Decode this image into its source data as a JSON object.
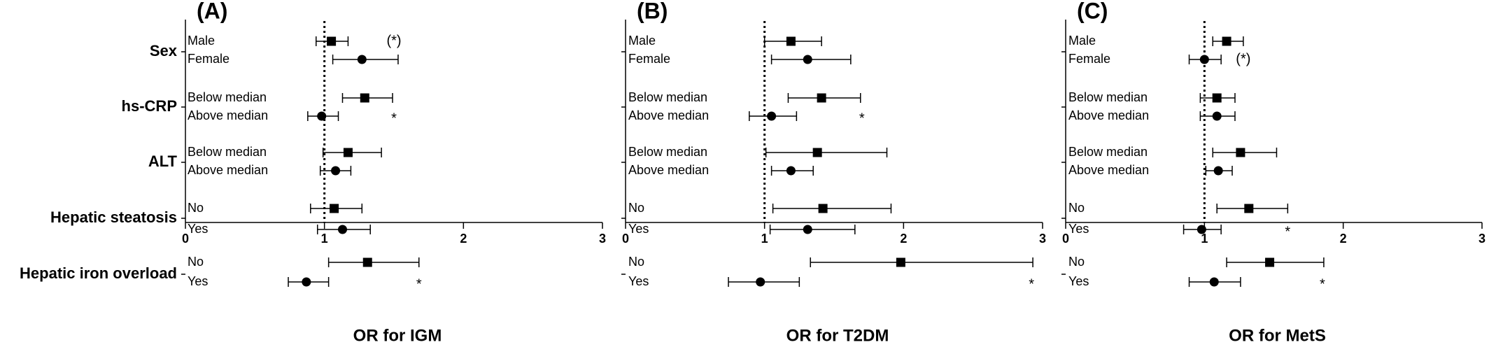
{
  "colors": {
    "ink": "#000000",
    "background": "#ffffff"
  },
  "groups": [
    {
      "label": "Sex",
      "subgroups": [
        "Male",
        "Female"
      ]
    },
    {
      "label": "hs-CRP",
      "subgroups": [
        "Below median",
        "Above median"
      ]
    },
    {
      "label": "ALT",
      "subgroups": [
        "Below median",
        "Above median"
      ]
    },
    {
      "label": "Hepatic steatosis",
      "subgroups": [
        "No",
        "Yes"
      ]
    },
    {
      "label": "Hepatic iron overload",
      "subgroups": [
        "No",
        "Yes"
      ]
    }
  ],
  "chart_data": [
    {
      "type": "forest",
      "panel": "(A)",
      "xlabel": "OR for IGM",
      "xlim": [
        0,
        3
      ],
      "xticks": [
        "0",
        "1",
        "2",
        "3"
      ],
      "reference_line": 1,
      "marker_style": {
        "first_subgroup": "square",
        "second_subgroup": "circle"
      },
      "rows": [
        {
          "group": "Sex",
          "subgroup": "Male",
          "or": 1.05,
          "ci": [
            0.94,
            1.17
          ]
        },
        {
          "group": "Sex",
          "subgroup": "Female",
          "or": 1.27,
          "ci": [
            1.06,
            1.53
          ]
        },
        {
          "group": "hs-CRP",
          "subgroup": "Below median",
          "or": 1.29,
          "ci": [
            1.13,
            1.49
          ]
        },
        {
          "group": "hs-CRP",
          "subgroup": "Above median",
          "or": 0.98,
          "ci": [
            0.88,
            1.1
          ]
        },
        {
          "group": "ALT",
          "subgroup": "Below median",
          "or": 1.17,
          "ci": [
            0.99,
            1.41
          ]
        },
        {
          "group": "ALT",
          "subgroup": "Above median",
          "or": 1.08,
          "ci": [
            0.97,
            1.19
          ]
        },
        {
          "group": "Hepatic steatosis",
          "subgroup": "No",
          "or": 1.07,
          "ci": [
            0.9,
            1.27
          ]
        },
        {
          "group": "Hepatic steatosis",
          "subgroup": "Yes",
          "or": 1.13,
          "ci": [
            0.95,
            1.33
          ]
        },
        {
          "group": "Hepatic iron overload",
          "subgroup": "No",
          "or": 1.31,
          "ci": [
            1.03,
            1.68
          ]
        },
        {
          "group": "Hepatic iron overload",
          "subgroup": "Yes",
          "or": 0.87,
          "ci": [
            0.74,
            1.03
          ]
        }
      ],
      "annotations": [
        {
          "text": "(*)",
          "group": "Sex",
          "subgroup": "Male",
          "x": 1.5
        },
        {
          "text": "*",
          "group": "hs-CRP",
          "subgroup": "Above median",
          "x": 1.5
        },
        {
          "text": "*",
          "group": "Hepatic iron overload",
          "subgroup": "Yes",
          "x": 1.68
        }
      ]
    },
    {
      "type": "forest",
      "panel": "(B)",
      "xlabel": "OR for T2DM",
      "xlim": [
        0,
        3
      ],
      "xticks": [
        "0",
        "1",
        "2",
        "3"
      ],
      "reference_line": 1,
      "marker_style": {
        "first_subgroup": "square",
        "second_subgroup": "circle"
      },
      "rows": [
        {
          "group": "Sex",
          "subgroup": "Male",
          "or": 1.19,
          "ci": [
            1.0,
            1.41
          ]
        },
        {
          "group": "Sex",
          "subgroup": "Female",
          "or": 1.31,
          "ci": [
            1.05,
            1.62
          ]
        },
        {
          "group": "hs-CRP",
          "subgroup": "Below median",
          "or": 1.41,
          "ci": [
            1.17,
            1.69
          ]
        },
        {
          "group": "hs-CRP",
          "subgroup": "Above median",
          "or": 1.05,
          "ci": [
            0.89,
            1.23
          ]
        },
        {
          "group": "ALT",
          "subgroup": "Below median",
          "or": 1.38,
          "ci": [
            1.01,
            1.88
          ]
        },
        {
          "group": "ALT",
          "subgroup": "Above median",
          "or": 1.19,
          "ci": [
            1.05,
            1.35
          ]
        },
        {
          "group": "Hepatic steatosis",
          "subgroup": "No",
          "or": 1.42,
          "ci": [
            1.06,
            1.91
          ]
        },
        {
          "group": "Hepatic steatosis",
          "subgroup": "Yes",
          "or": 1.31,
          "ci": [
            1.04,
            1.65
          ]
        },
        {
          "group": "Hepatic iron overload",
          "subgroup": "No",
          "or": 1.98,
          "ci": [
            1.33,
            2.93
          ]
        },
        {
          "group": "Hepatic iron overload",
          "subgroup": "Yes",
          "or": 0.97,
          "ci": [
            0.74,
            1.25
          ]
        }
      ],
      "annotations": [
        {
          "text": "*",
          "group": "hs-CRP",
          "subgroup": "Above median",
          "x": 1.7
        },
        {
          "text": "*",
          "group": "Hepatic iron overload",
          "subgroup": "Yes",
          "x": 2.92
        }
      ]
    },
    {
      "type": "forest",
      "panel": "(C)",
      "xlabel": "OR for MetS",
      "xlim": [
        0,
        3
      ],
      "xticks": [
        "0",
        "1",
        "2",
        "3"
      ],
      "reference_line": 1,
      "marker_style": {
        "first_subgroup": "square",
        "second_subgroup": "circle"
      },
      "rows": [
        {
          "group": "Sex",
          "subgroup": "Male",
          "or": 1.16,
          "ci": [
            1.06,
            1.28
          ]
        },
        {
          "group": "Sex",
          "subgroup": "Female",
          "or": 1.0,
          "ci": [
            0.89,
            1.12
          ]
        },
        {
          "group": "hs-CRP",
          "subgroup": "Below median",
          "or": 1.09,
          "ci": [
            0.97,
            1.22
          ]
        },
        {
          "group": "hs-CRP",
          "subgroup": "Above median",
          "or": 1.09,
          "ci": [
            0.97,
            1.22
          ]
        },
        {
          "group": "ALT",
          "subgroup": "Below median",
          "or": 1.26,
          "ci": [
            1.06,
            1.52
          ]
        },
        {
          "group": "ALT",
          "subgroup": "Above median",
          "or": 1.1,
          "ci": [
            1.01,
            1.2
          ]
        },
        {
          "group": "Hepatic steatosis",
          "subgroup": "No",
          "or": 1.32,
          "ci": [
            1.09,
            1.6
          ]
        },
        {
          "group": "Hepatic steatosis",
          "subgroup": "Yes",
          "or": 0.98,
          "ci": [
            0.85,
            1.12
          ]
        },
        {
          "group": "Hepatic iron overload",
          "subgroup": "No",
          "or": 1.47,
          "ci": [
            1.16,
            1.86
          ]
        },
        {
          "group": "Hepatic iron overload",
          "subgroup": "Yes",
          "or": 1.07,
          "ci": [
            0.89,
            1.26
          ]
        }
      ],
      "annotations": [
        {
          "text": "(*)",
          "group": "Sex",
          "subgroup": "Female",
          "x": 1.28
        },
        {
          "text": "*",
          "group": "Hepatic steatosis",
          "subgroup": "Yes",
          "x": 1.6
        },
        {
          "text": "*",
          "group": "Hepatic iron overload",
          "subgroup": "Yes",
          "x": 1.85
        }
      ]
    }
  ]
}
